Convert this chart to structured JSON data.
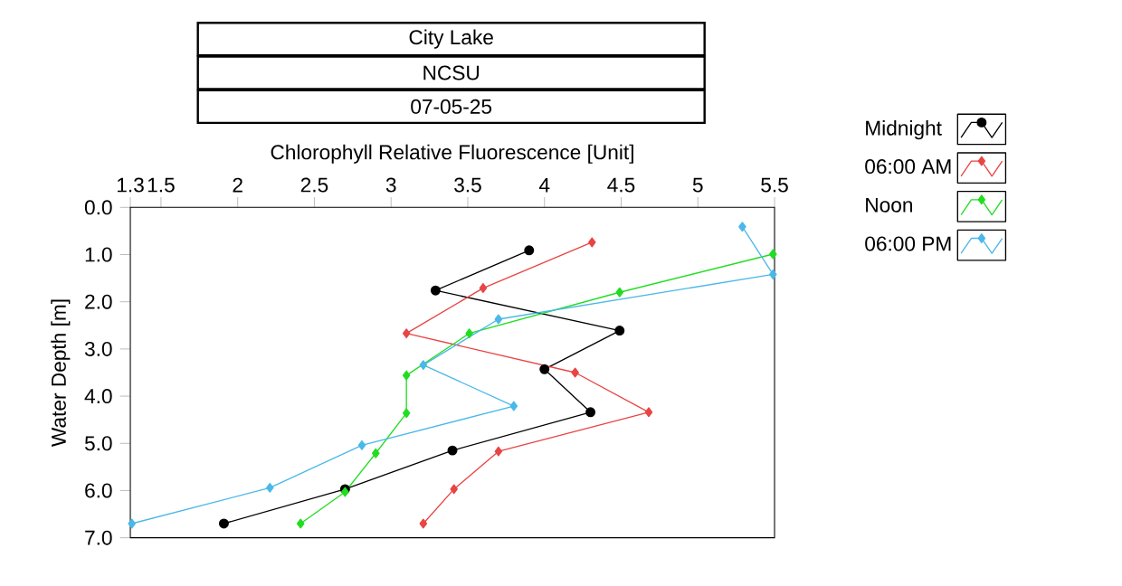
{
  "chart_data": {
    "type": "line",
    "title": "City Lake",
    "subtitle": "NCSU",
    "annotations": [
      "07-05-25"
    ],
    "xlabel": "Chlorophyll Relative Fluorescence [Unit]",
    "ylabel": "Water Depth [m]",
    "xlim": [
      1.3,
      5.5
    ],
    "xticks": [
      1.3,
      1.5,
      2,
      2.5,
      3,
      3.5,
      4,
      4.5,
      5,
      5.5
    ],
    "ylim": [
      7.0,
      0.0
    ],
    "yticks": [
      {
        "value": 0,
        "label": "0.0"
      },
      {
        "value": 1,
        "label": "1.0"
      },
      {
        "value": 2,
        "label": "2.0"
      },
      {
        "value": 3,
        "label": "3.0"
      },
      {
        "value": 4,
        "label": "4.0"
      },
      {
        "value": 5,
        "label": "5.0"
      },
      {
        "value": 6,
        "label": "6.0"
      },
      {
        "value": 7,
        "label": "7.0"
      }
    ],
    "legend": "top right",
    "grid": false,
    "line_style": "solid",
    "series": [
      {
        "name": "Midnight",
        "color": "#000000",
        "marker": "circle",
        "x": [
          3.9,
          3.29,
          4.49,
          4.0,
          4.3,
          3.4,
          2.7,
          1.91
        ],
        "values": [
          0.91,
          1.76,
          2.61,
          3.43,
          4.34,
          5.15,
          5.97,
          6.7
        ]
      },
      {
        "name": "06:00 AM",
        "color": "#e84545",
        "marker": "diamond",
        "x": [
          4.31,
          3.6,
          3.1,
          4.2,
          4.68,
          3.7,
          3.41,
          3.21
        ],
        "values": [
          0.74,
          1.71,
          2.67,
          3.5,
          4.34,
          5.17,
          5.97,
          6.7
        ]
      },
      {
        "name": "Noon",
        "color": "#22dd22",
        "marker": "diamond",
        "x": [
          5.49,
          4.49,
          3.51,
          3.1,
          3.1,
          2.9,
          2.7,
          2.41
        ],
        "values": [
          0.99,
          1.8,
          2.67,
          3.56,
          4.36,
          5.21,
          6.03,
          6.7
        ]
      },
      {
        "name": "06:00 PM",
        "color": "#4ab8e8",
        "marker": "diamond",
        "x": [
          5.29,
          5.49,
          3.7,
          3.21,
          3.8,
          2.81,
          2.21,
          1.31
        ],
        "values": [
          0.41,
          1.42,
          2.37,
          3.34,
          4.21,
          5.04,
          5.94,
          6.7
        ]
      }
    ]
  }
}
